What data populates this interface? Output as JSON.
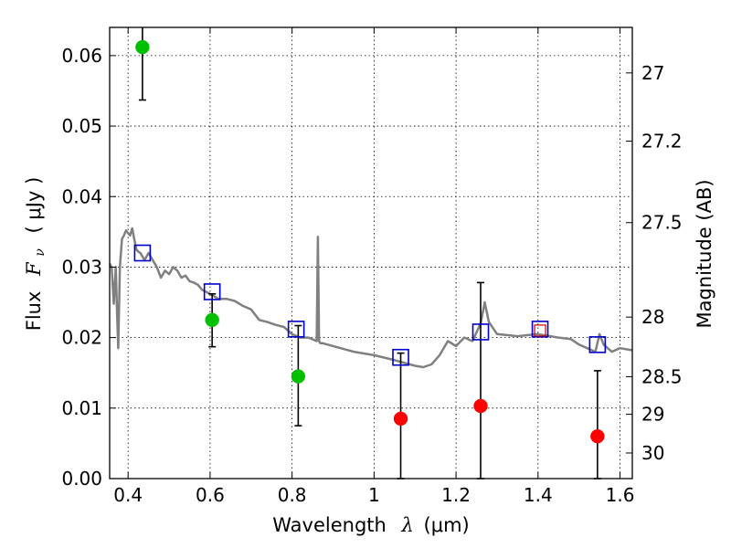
{
  "chart_data": {
    "type": "scatter",
    "xlabel_prefix": "Wavelength",
    "xlabel_symbol": "λ",
    "xlabel_unit": "(μm)",
    "ylabel_prefix": "Flux",
    "ylabel_symbol": "F",
    "ylabel_sub": "ν",
    "ylabel_unit": "( μJy )",
    "ylabel_right": "Magnitude (AB)",
    "xlim": [
      0.355,
      1.63
    ],
    "ylim": [
      0.0,
      0.064
    ],
    "grid": true,
    "x_ticks": [
      0.4,
      0.6,
      0.8,
      1.0,
      1.2,
      1.4,
      1.6
    ],
    "x_tick_labels": [
      "0.4",
      "0.6",
      "0.8",
      "1",
      "1.2",
      "1.4",
      "1.6"
    ],
    "y_ticks": [
      0.0,
      0.01,
      0.02,
      0.03,
      0.04,
      0.05,
      0.06
    ],
    "y_tick_labels": [
      "0.00",
      "0.01",
      "0.02",
      "0.03",
      "0.04",
      "0.05",
      "0.06"
    ],
    "right_ticks": [
      27,
      27.2,
      27.5,
      28,
      28.5,
      29,
      30
    ],
    "right_tick_labels": [
      "27",
      "27.2",
      "27.5",
      "28",
      "28.5",
      "29",
      "30"
    ],
    "model_sed": {
      "name": "model spectrum",
      "color": "#808080",
      "x": [
        0.355,
        0.36,
        0.365,
        0.37,
        0.373,
        0.376,
        0.38,
        0.385,
        0.39,
        0.395,
        0.4,
        0.405,
        0.41,
        0.415,
        0.42,
        0.425,
        0.43,
        0.435,
        0.44,
        0.45,
        0.46,
        0.47,
        0.48,
        0.49,
        0.5,
        0.51,
        0.52,
        0.53,
        0.54,
        0.55,
        0.56,
        0.57,
        0.58,
        0.6,
        0.62,
        0.64,
        0.66,
        0.68,
        0.7,
        0.72,
        0.74,
        0.75,
        0.76,
        0.78,
        0.8,
        0.82,
        0.84,
        0.86,
        0.863,
        0.866,
        0.869,
        0.875,
        0.9,
        0.95,
        1.0,
        1.05,
        1.1,
        1.12,
        1.14,
        1.16,
        1.18,
        1.2,
        1.22,
        1.24,
        1.26,
        1.27,
        1.28,
        1.3,
        1.35,
        1.4,
        1.45,
        1.48,
        1.5,
        1.52,
        1.54,
        1.55,
        1.56,
        1.58,
        1.6,
        1.63
      ],
      "y": [
        0.0305,
        0.03,
        0.0248,
        0.03,
        0.0235,
        0.0185,
        0.03,
        0.034,
        0.0345,
        0.0352,
        0.0348,
        0.0345,
        0.0355,
        0.034,
        0.0325,
        0.0322,
        0.032,
        0.0315,
        0.031,
        0.032,
        0.031,
        0.03,
        0.0285,
        0.0295,
        0.029,
        0.03,
        0.0295,
        0.0285,
        0.0288,
        0.028,
        0.0278,
        0.0275,
        0.0268,
        0.0262,
        0.0255,
        0.0255,
        0.0252,
        0.0245,
        0.024,
        0.0225,
        0.0222,
        0.022,
        0.0218,
        0.0215,
        0.0205,
        0.02,
        0.02,
        0.0195,
        0.0343,
        0.0195,
        0.0192,
        0.0192,
        0.0188,
        0.018,
        0.0175,
        0.0168,
        0.016,
        0.0158,
        0.0162,
        0.0175,
        0.0195,
        0.0188,
        0.02,
        0.0195,
        0.022,
        0.025,
        0.0222,
        0.0205,
        0.0202,
        0.0205,
        0.02,
        0.0198,
        0.019,
        0.0185,
        0.018,
        0.0205,
        0.019,
        0.018,
        0.0185,
        0.0182
      ]
    },
    "model_points": {
      "name": "model photometry",
      "color": "#0000cc",
      "x": [
        0.435,
        0.605,
        0.81,
        1.065,
        1.26,
        1.405,
        1.545
      ],
      "y": [
        0.032,
        0.0265,
        0.0212,
        0.0172,
        0.0208,
        0.0212,
        0.019
      ]
    },
    "highlight_point": {
      "name": "highlighted model point",
      "color": "#cc0000",
      "x": 1.405,
      "y": 0.021
    },
    "detections": {
      "name": "detections",
      "color": "#00c000",
      "x": [
        0.435,
        0.605,
        0.815
      ],
      "y": [
        0.0612,
        0.0225,
        0.0145
      ],
      "yerr_low": [
        0.0537,
        0.0187,
        0.0075
      ],
      "yerr_high": [
        0.065,
        0.0262,
        0.0217
      ]
    },
    "upper_limits": {
      "name": "non-detections",
      "color": "#ff0000",
      "x": [
        1.065,
        1.26,
        1.545
      ],
      "y": [
        0.0085,
        0.0103,
        0.006
      ],
      "yerr_low": [
        0.0,
        0.0,
        0.0
      ],
      "yerr_high": [
        0.0178,
        0.0278,
        0.0153
      ]
    }
  }
}
